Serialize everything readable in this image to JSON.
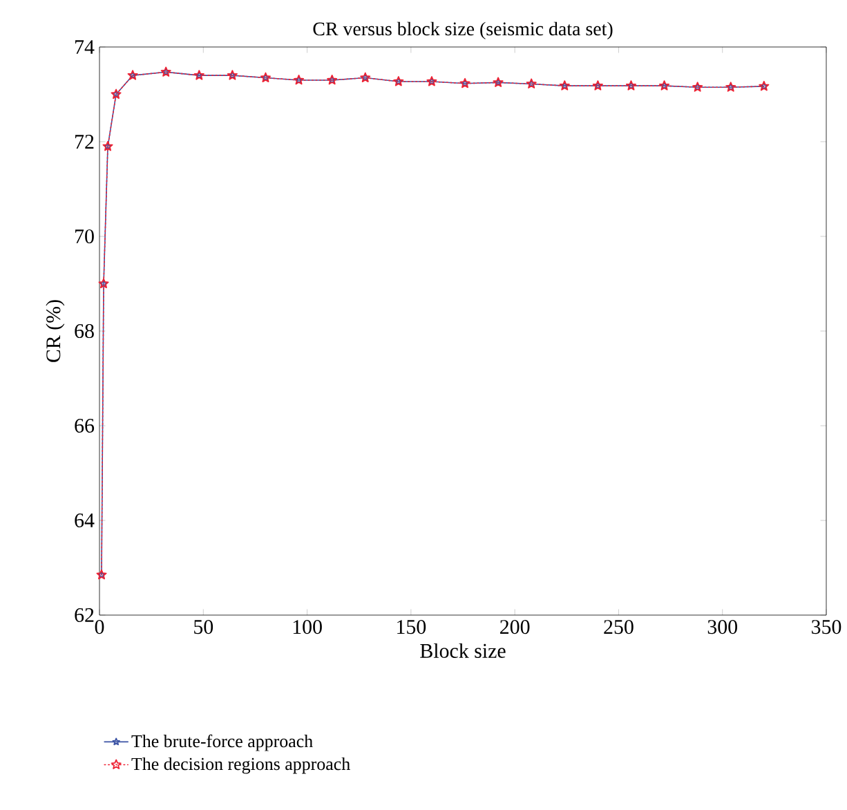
{
  "chart_data": {
    "type": "line",
    "title": "CR versus block size (seismic data set)",
    "xlabel": "Block size",
    "ylabel": "CR (%)",
    "xlim": [
      0,
      350
    ],
    "xticks": [
      0,
      50,
      100,
      150,
      200,
      250,
      300,
      350
    ],
    "ylim": [
      62,
      74
    ],
    "yticks": [
      62,
      64,
      66,
      68,
      70,
      72,
      74
    ],
    "x": [
      1,
      2,
      4,
      8,
      16,
      32,
      48,
      64,
      80,
      96,
      112,
      128,
      144,
      160,
      176,
      192,
      208,
      224,
      240,
      256,
      272,
      288,
      304,
      320
    ],
    "legend": "bottom",
    "grid": false,
    "series": [
      {
        "name": "The brute-force approach",
        "color": "#3a52a4",
        "marker": "star",
        "line_style": "solid",
        "values": [
          62.85,
          69.0,
          71.9,
          73.0,
          73.4,
          73.47,
          73.4,
          73.4,
          73.35,
          73.3,
          73.3,
          73.35,
          73.27,
          73.27,
          73.23,
          73.25,
          73.22,
          73.18,
          73.18,
          73.18,
          73.18,
          73.15,
          73.15,
          73.17
        ]
      },
      {
        "name": "The decision regions approach",
        "color": "#ee2233",
        "marker": "star",
        "line_style": "dotted",
        "values": [
          62.85,
          69.0,
          71.9,
          73.0,
          73.4,
          73.47,
          73.4,
          73.4,
          73.35,
          73.3,
          73.3,
          73.35,
          73.27,
          73.27,
          73.23,
          73.25,
          73.22,
          73.18,
          73.18,
          73.18,
          73.18,
          73.15,
          73.15,
          73.17
        ]
      }
    ]
  }
}
